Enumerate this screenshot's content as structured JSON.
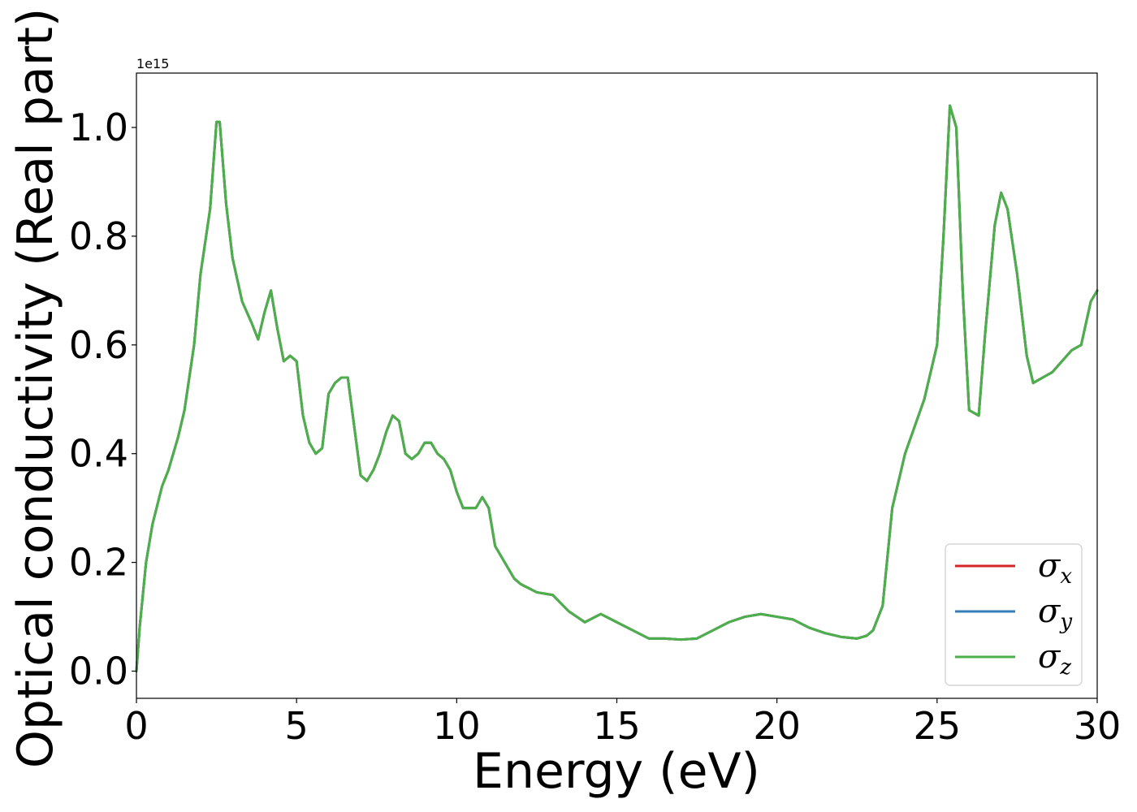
{
  "chart_data": {
    "type": "line",
    "xlabel": "Energy (eV)",
    "ylabel": "Optical conductivity (Real part)",
    "y_offset_label": "1e15",
    "y_scale": 1000000000000000.0,
    "xlim": [
      0,
      30
    ],
    "ylim": [
      -0.05,
      1.1
    ],
    "x_ticks": [
      0,
      5,
      10,
      15,
      20,
      25,
      30
    ],
    "x_tick_labels": [
      "0",
      "5",
      "10",
      "15",
      "20",
      "25",
      "30"
    ],
    "y_ticks": [
      0.0,
      0.2,
      0.4,
      0.6,
      0.8,
      1.0
    ],
    "y_tick_labels": [
      "0.0",
      "0.2",
      "0.4",
      "0.6",
      "0.8",
      "1.0"
    ],
    "grid": false,
    "legend_position": "lower-right",
    "legend": [
      {
        "symbol": "σ",
        "subscript": "x",
        "color": "#d62728"
      },
      {
        "symbol": "σ",
        "subscript": "y",
        "color": "#377eb8"
      },
      {
        "symbol": "σ",
        "subscript": "z",
        "color": "#4daf4a"
      }
    ],
    "x": [
      0,
      0.1,
      0.3,
      0.5,
      0.8,
      1.0,
      1.3,
      1.5,
      1.8,
      2.0,
      2.3,
      2.5,
      2.6,
      2.8,
      3.0,
      3.3,
      3.6,
      3.8,
      4.0,
      4.2,
      4.4,
      4.6,
      4.8,
      5.0,
      5.2,
      5.4,
      5.6,
      5.8,
      6.0,
      6.2,
      6.4,
      6.6,
      6.8,
      7.0,
      7.2,
      7.4,
      7.6,
      7.8,
      8.0,
      8.2,
      8.4,
      8.6,
      8.8,
      9.0,
      9.2,
      9.4,
      9.6,
      9.8,
      10.0,
      10.2,
      10.4,
      10.6,
      10.8,
      11.0,
      11.2,
      11.5,
      11.8,
      12.0,
      12.5,
      13.0,
      13.5,
      14.0,
      14.5,
      15.0,
      15.5,
      16.0,
      16.5,
      17.0,
      17.5,
      18.0,
      18.5,
      19.0,
      19.5,
      20.0,
      20.5,
      21.0,
      21.5,
      22.0,
      22.5,
      22.8,
      23.0,
      23.3,
      23.6,
      24.0,
      24.3,
      24.6,
      24.8,
      25.0,
      25.2,
      25.4,
      25.6,
      25.8,
      26.0,
      26.3,
      26.5,
      26.8,
      27.0,
      27.2,
      27.5,
      27.8,
      28.0,
      28.3,
      28.6,
      28.9,
      29.2,
      29.5,
      29.8,
      30.0
    ],
    "series": [
      {
        "name": "σx",
        "color": "#d62728",
        "values": [
          0.0,
          0.08,
          0.2,
          0.27,
          0.34,
          0.37,
          0.43,
          0.48,
          0.6,
          0.73,
          0.85,
          1.01,
          1.01,
          0.86,
          0.76,
          0.68,
          0.64,
          0.61,
          0.66,
          0.7,
          0.63,
          0.57,
          0.58,
          0.57,
          0.47,
          0.42,
          0.4,
          0.41,
          0.51,
          0.53,
          0.54,
          0.54,
          0.45,
          0.36,
          0.35,
          0.37,
          0.4,
          0.44,
          0.47,
          0.46,
          0.4,
          0.39,
          0.4,
          0.42,
          0.42,
          0.4,
          0.39,
          0.37,
          0.33,
          0.3,
          0.3,
          0.3,
          0.32,
          0.3,
          0.23,
          0.2,
          0.17,
          0.16,
          0.145,
          0.14,
          0.11,
          0.09,
          0.105,
          0.09,
          0.075,
          0.06,
          0.06,
          0.058,
          0.06,
          0.075,
          0.09,
          0.1,
          0.105,
          0.1,
          0.095,
          0.08,
          0.07,
          0.063,
          0.06,
          0.065,
          0.075,
          0.12,
          0.3,
          0.4,
          0.45,
          0.5,
          0.55,
          0.6,
          0.8,
          1.04,
          1.0,
          0.7,
          0.48,
          0.47,
          0.62,
          0.82,
          0.88,
          0.85,
          0.73,
          0.58,
          0.53,
          0.54,
          0.55,
          0.57,
          0.59,
          0.6,
          0.68,
          0.7
        ]
      },
      {
        "name": "σy",
        "color": "#377eb8",
        "values": [
          0.0,
          0.08,
          0.2,
          0.27,
          0.34,
          0.37,
          0.43,
          0.48,
          0.6,
          0.73,
          0.85,
          1.01,
          1.01,
          0.86,
          0.76,
          0.68,
          0.64,
          0.61,
          0.66,
          0.7,
          0.63,
          0.57,
          0.58,
          0.57,
          0.47,
          0.42,
          0.4,
          0.41,
          0.51,
          0.53,
          0.54,
          0.54,
          0.45,
          0.36,
          0.35,
          0.37,
          0.4,
          0.44,
          0.47,
          0.46,
          0.4,
          0.39,
          0.4,
          0.42,
          0.42,
          0.4,
          0.39,
          0.37,
          0.33,
          0.3,
          0.3,
          0.3,
          0.32,
          0.3,
          0.23,
          0.2,
          0.17,
          0.16,
          0.145,
          0.14,
          0.11,
          0.09,
          0.105,
          0.09,
          0.075,
          0.06,
          0.06,
          0.058,
          0.06,
          0.075,
          0.09,
          0.1,
          0.105,
          0.1,
          0.095,
          0.08,
          0.07,
          0.063,
          0.06,
          0.065,
          0.075,
          0.12,
          0.3,
          0.4,
          0.45,
          0.5,
          0.55,
          0.6,
          0.8,
          1.04,
          1.0,
          0.7,
          0.48,
          0.47,
          0.62,
          0.82,
          0.88,
          0.85,
          0.73,
          0.58,
          0.53,
          0.54,
          0.55,
          0.57,
          0.59,
          0.6,
          0.68,
          0.7
        ]
      },
      {
        "name": "σz",
        "color": "#4daf4a",
        "values": [
          0.0,
          0.08,
          0.2,
          0.27,
          0.34,
          0.37,
          0.43,
          0.48,
          0.6,
          0.73,
          0.85,
          1.01,
          1.01,
          0.86,
          0.76,
          0.68,
          0.64,
          0.61,
          0.66,
          0.7,
          0.63,
          0.57,
          0.58,
          0.57,
          0.47,
          0.42,
          0.4,
          0.41,
          0.51,
          0.53,
          0.54,
          0.54,
          0.45,
          0.36,
          0.35,
          0.37,
          0.4,
          0.44,
          0.47,
          0.46,
          0.4,
          0.39,
          0.4,
          0.42,
          0.42,
          0.4,
          0.39,
          0.37,
          0.33,
          0.3,
          0.3,
          0.3,
          0.32,
          0.3,
          0.23,
          0.2,
          0.17,
          0.16,
          0.145,
          0.14,
          0.11,
          0.09,
          0.105,
          0.09,
          0.075,
          0.06,
          0.06,
          0.058,
          0.06,
          0.075,
          0.09,
          0.1,
          0.105,
          0.1,
          0.095,
          0.08,
          0.07,
          0.063,
          0.06,
          0.065,
          0.075,
          0.12,
          0.3,
          0.4,
          0.45,
          0.5,
          0.55,
          0.6,
          0.8,
          1.04,
          1.0,
          0.7,
          0.48,
          0.47,
          0.62,
          0.82,
          0.88,
          0.85,
          0.73,
          0.58,
          0.53,
          0.54,
          0.55,
          0.57,
          0.59,
          0.6,
          0.68,
          0.7
        ]
      }
    ]
  }
}
